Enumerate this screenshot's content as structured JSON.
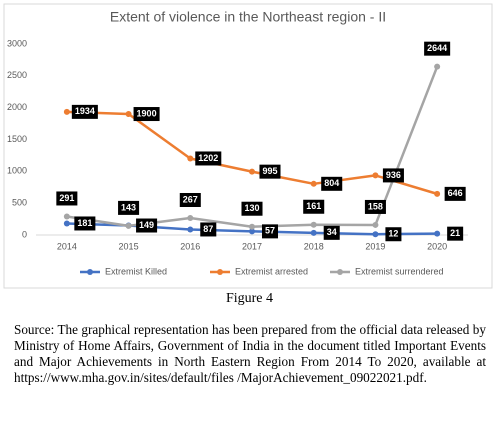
{
  "chart_data": {
    "type": "line",
    "title": "Extent of violence in the Northeast region - II",
    "categories": [
      "2014",
      "2015",
      "2016",
      "2017",
      "2018",
      "2019",
      "2020"
    ],
    "series": [
      {
        "name": "Extremist Killed",
        "color": "#4472c4",
        "values": [
          181,
          149,
          87,
          57,
          34,
          12,
          21
        ]
      },
      {
        "name": "Extremist arrested",
        "color": "#ed7d31",
        "values": [
          1934,
          1900,
          1202,
          995,
          804,
          936,
          646
        ]
      },
      {
        "name": "Extremist surrendered",
        "color": "#a5a5a5",
        "values": [
          291,
          143,
          267,
          130,
          161,
          158,
          2644
        ]
      }
    ],
    "ylim": [
      0,
      3000
    ],
    "yticks": [
      0,
      500,
      1000,
      1500,
      2000,
      2500,
      3000
    ],
    "grid": false,
    "legend": "bottom"
  },
  "caption": "Figure 4",
  "source": "Source: The graphical representation has been prepared from the official data released by Ministry of Home Affairs, Government of India in the document titled Important Events and Major Achievements in North Eastern Region From 2014 To 2020, available at https://www.mha.gov.in/sites/default/files /MajorAchievement_09022021.pdf."
}
